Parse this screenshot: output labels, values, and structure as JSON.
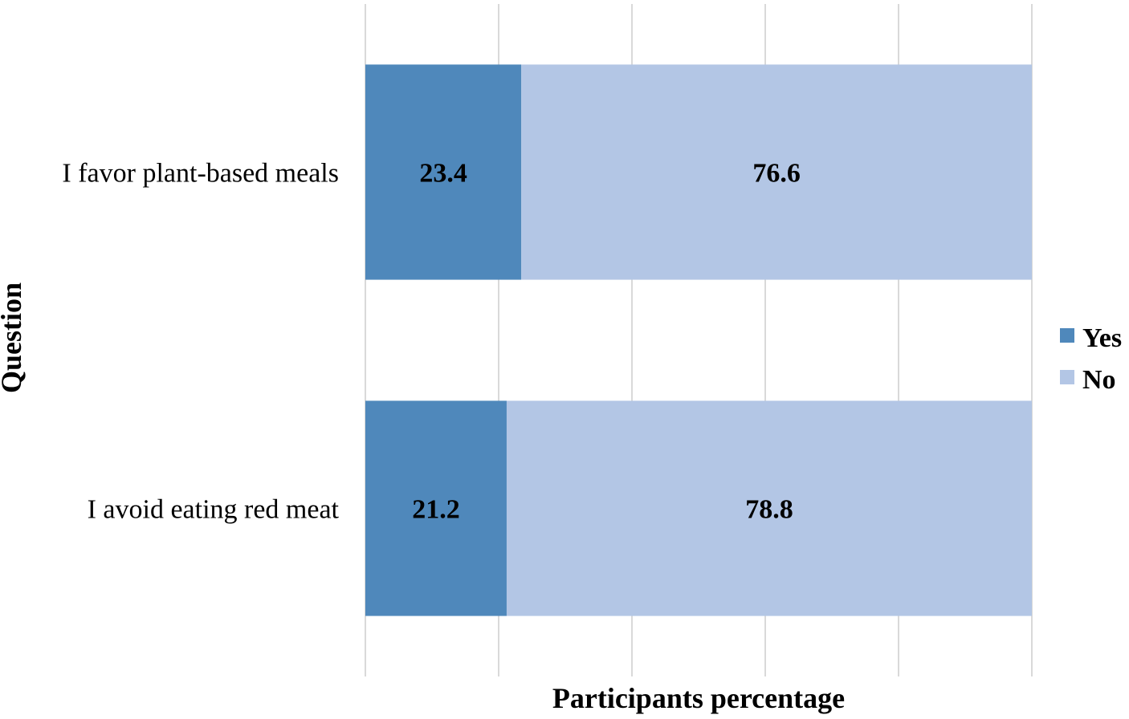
{
  "chart_data": {
    "type": "bar",
    "orientation": "horizontal",
    "stacked": true,
    "categories": [
      "I favor plant-based meals",
      "I avoid eating red meat"
    ],
    "series": [
      {
        "name": "Yes",
        "values": [
          23.4,
          21.2
        ],
        "color": "#4f88bb"
      },
      {
        "name": "No",
        "values": [
          76.6,
          78.8
        ],
        "color": "#b3c6e5"
      }
    ],
    "xlabel": "Participants percentage",
    "ylabel": "Question",
    "xlim": [
      0,
      100
    ],
    "x_gridlines": [
      0,
      20,
      40,
      60,
      80,
      100
    ],
    "x_tick_labels_shown": false,
    "grid": true,
    "grid_color": "#d9d9d9",
    "data_labels": true,
    "legend_position": "right"
  }
}
